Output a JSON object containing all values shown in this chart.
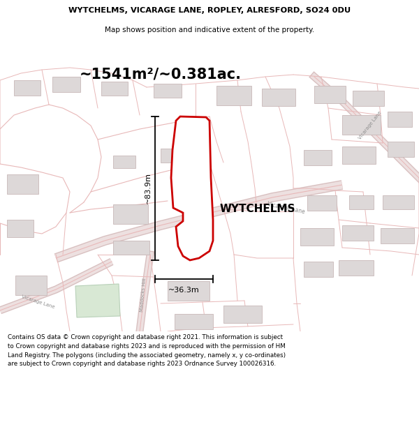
{
  "title_line1": "WYTCHELMS, VICARAGE LANE, ROPLEY, ALRESFORD, SO24 0DU",
  "title_line2": "Map shows position and indicative extent of the property.",
  "area_text": "~1541m²/~0.381ac.",
  "property_label": "WYTCHELMS",
  "dim_vertical": "~83.9m",
  "dim_horizontal": "~36.3m",
  "footer_text": "Contains OS data © Crown copyright and database right 2021. This information is subject to Crown copyright and database rights 2023 and is reproduced with the permission of HM Land Registry. The polygons (including the associated geometry, namely x, y co-ordinates) are subject to Crown copyright and database rights 2023 Ordnance Survey 100026316.",
  "bg_color": "#ffffff",
  "map_bg": "#f8f3f3",
  "road_color": "#e8b8b8",
  "road_fill": "#f0e0e0",
  "plot_color": "#e8b8b8",
  "building_fill": "#ddd8d8",
  "building_edge": "#c8b8b8",
  "property_edge": "#cc0000",
  "property_fill": "#ffffff",
  "green_fill": "#d8e8d4",
  "green_edge": "#b8d0b8",
  "dim_color": "#000000",
  "road_label_color": "#909090",
  "vicarage_lane_label": "Vicarage Lane",
  "maddocks_hill_label": "Maddocks Hill"
}
